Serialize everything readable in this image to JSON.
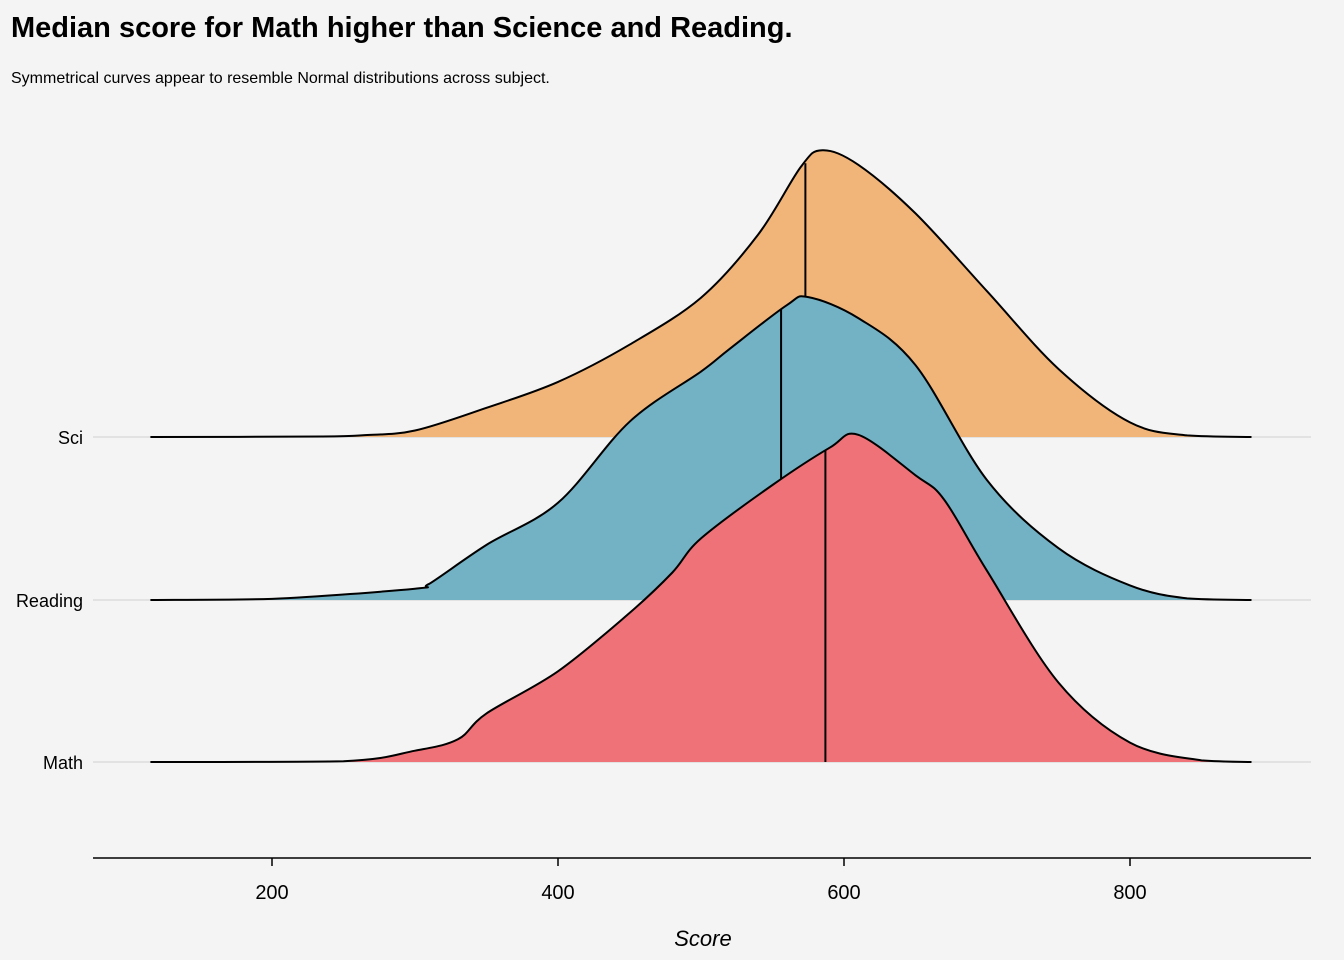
{
  "title": "Median score for Math higher than Science and Reading.",
  "subtitle": "Symmetrical curves appear to resemble Normal distributions across subject.",
  "chart_data": {
    "type": "area",
    "subtype": "ridgeline",
    "xlabel": "Score",
    "ylabel": "",
    "xlim": [
      75,
      925
    ],
    "x_ticks": [
      200,
      400,
      600,
      800
    ],
    "y_categories": [
      "Math",
      "Reading",
      "Sci"
    ],
    "grid": "horizontal baselines only",
    "series": [
      {
        "name": "Sci",
        "color": "#f2b579",
        "median": 573,
        "x": [
          115,
          235,
          265,
          300,
          350,
          400,
          450,
          500,
          540,
          570,
          585,
          610,
          650,
          700,
          750,
          800,
          840,
          885
        ],
        "y": [
          0,
          0.003,
          0.012,
          0.04,
          0.18,
          0.34,
          0.57,
          0.86,
          1.25,
          1.67,
          1.77,
          1.68,
          1.38,
          0.9,
          0.42,
          0.09,
          0.01,
          0
        ]
      },
      {
        "name": "Reading",
        "color": "#73b1c4",
        "median": 556,
        "x": [
          115,
          200,
          300,
          310,
          350,
          400,
          450,
          500,
          520,
          560,
          575,
          610,
          650,
          700,
          750,
          800,
          840,
          885
        ],
        "y": [
          0,
          0.007,
          0.07,
          0.1,
          0.34,
          0.6,
          1.1,
          1.41,
          1.55,
          1.82,
          1.87,
          1.74,
          1.45,
          0.74,
          0.32,
          0.09,
          0.01,
          0
        ]
      },
      {
        "name": "Math",
        "color": "#f07279",
        "median": 587,
        "x": [
          115,
          250,
          300,
          330,
          350,
          400,
          450,
          480,
          500,
          550,
          590,
          610,
          650,
          670,
          700,
          750,
          800,
          850,
          885
        ],
        "y": [
          0,
          0.005,
          0.07,
          0.14,
          0.3,
          0.56,
          0.92,
          1.17,
          1.38,
          1.71,
          1.94,
          2.02,
          1.77,
          1.62,
          1.18,
          0.49,
          0.12,
          0.01,
          0
        ]
      }
    ]
  }
}
